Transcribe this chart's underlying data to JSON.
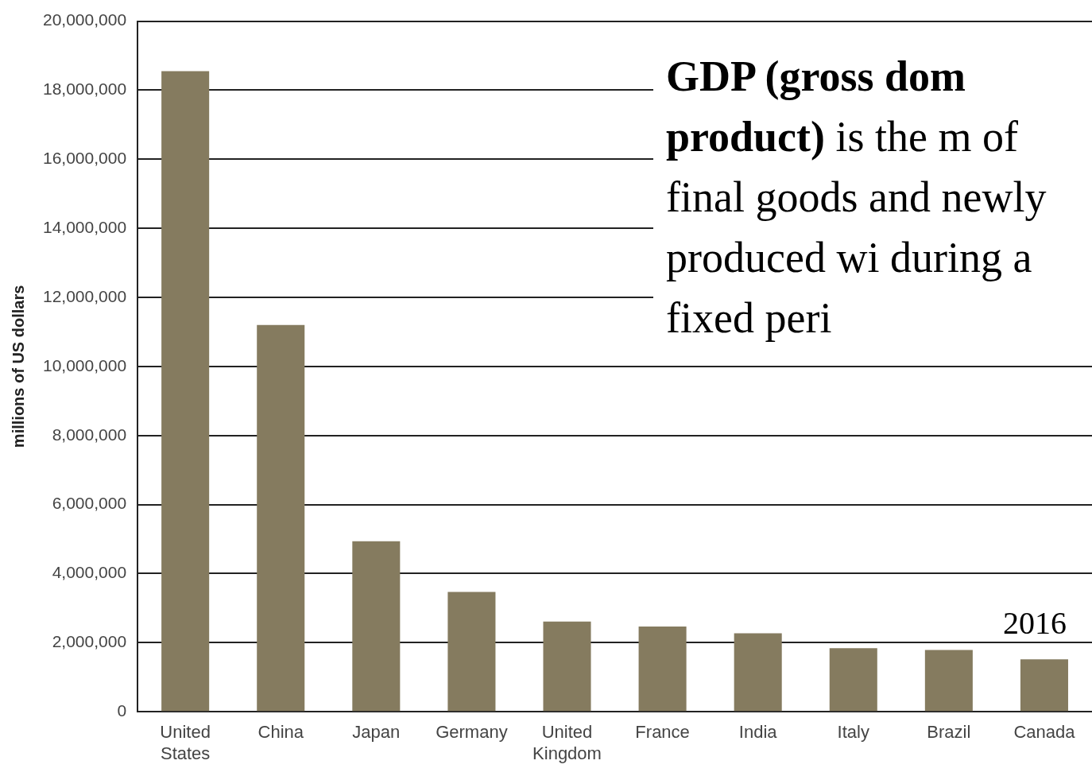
{
  "chart_data": {
    "type": "bar",
    "ylabel": "millions of US dollars",
    "categories": [
      "United States",
      "China",
      "Japan",
      "Germany",
      "United Kingdom",
      "France",
      "India",
      "Italy",
      "Brazil",
      "Canada"
    ],
    "values": [
      18550000,
      11200000,
      4940000,
      3470000,
      2610000,
      2470000,
      2270000,
      1840000,
      1790000,
      1520000
    ],
    "color": "#857b5f",
    "ylim": [
      0,
      20000000
    ],
    "yticks": [
      0,
      {
        "value": 2000000,
        "label": "2,000,000"
      },
      {
        "value": 4000000,
        "label": "4,000,000"
      },
      {
        "value": 6000000,
        "label": "6,000,000"
      },
      {
        "value": 8000000,
        "label": "8,000,000"
      },
      {
        "value": 10000000,
        "label": "10,000,000"
      },
      {
        "value": 12000000,
        "label": "12,000,000"
      },
      {
        "value": 14000000,
        "label": "14,000,000"
      },
      {
        "value": 16000000,
        "label": "16,000,000"
      },
      {
        "value": 18000000,
        "label": "18,000,000"
      },
      {
        "value": 20000000,
        "label": "20,000,000"
      }
    ],
    "grid": "y",
    "legend": false,
    "annotations": [
      "GDP (gross dom product)",
      "is the m of final goods and newly produced wi during a fixed peri",
      "2016"
    ]
  }
}
